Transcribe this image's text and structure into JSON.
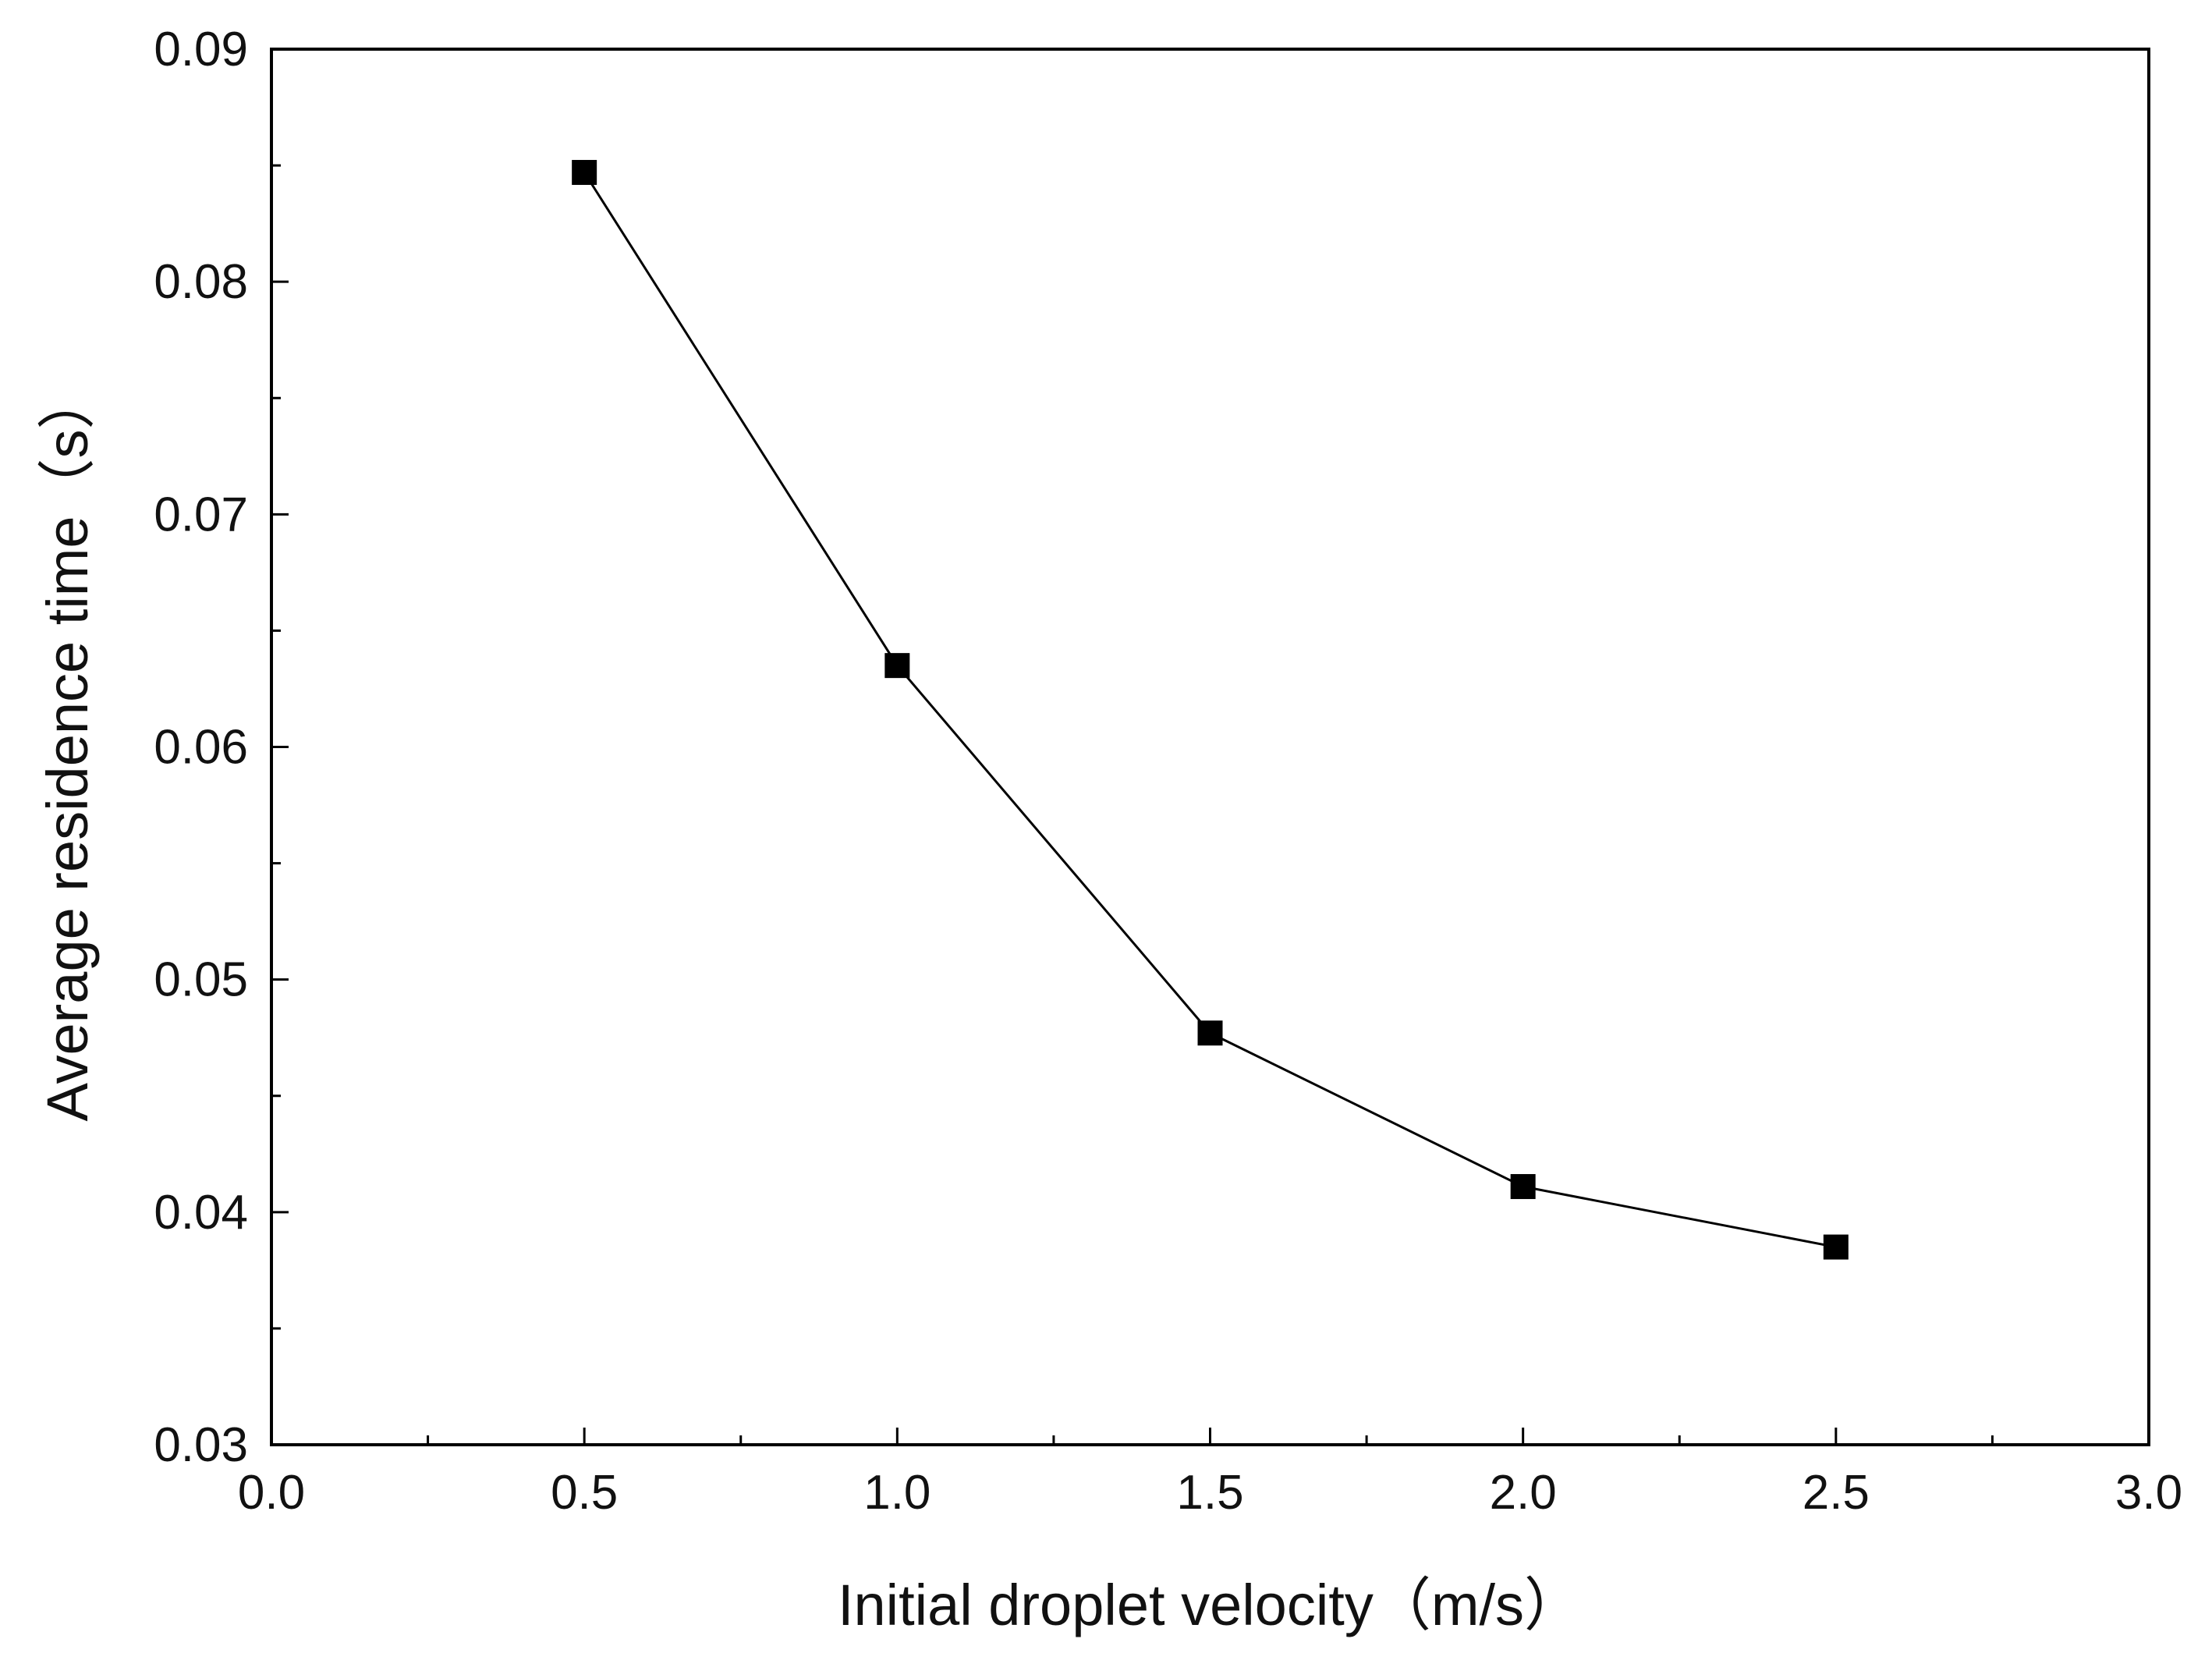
{
  "chart_data": {
    "type": "line",
    "title": "",
    "xlabel": "Initial droplet velocity（m/s）",
    "ylabel": "Average residence time（s）",
    "xlim": [
      0.0,
      3.0
    ],
    "ylim": [
      0.03,
      0.09
    ],
    "xticks": [
      "0.0",
      "0.5",
      "1.0",
      "1.5",
      "2.0",
      "2.5",
      "3.0"
    ],
    "yticks": [
      "0.03",
      "0.04",
      "0.05",
      "0.06",
      "0.07",
      "0.08",
      "0.09"
    ],
    "grid": false,
    "legend": "none",
    "series": [
      {
        "name": "Average residence time",
        "marker": "square",
        "color": "#000000",
        "x": [
          0.5,
          1.0,
          1.5,
          2.0,
          2.5
        ],
        "y": [
          0.0847,
          0.0635,
          0.0477,
          0.0411,
          0.0385
        ]
      }
    ]
  }
}
